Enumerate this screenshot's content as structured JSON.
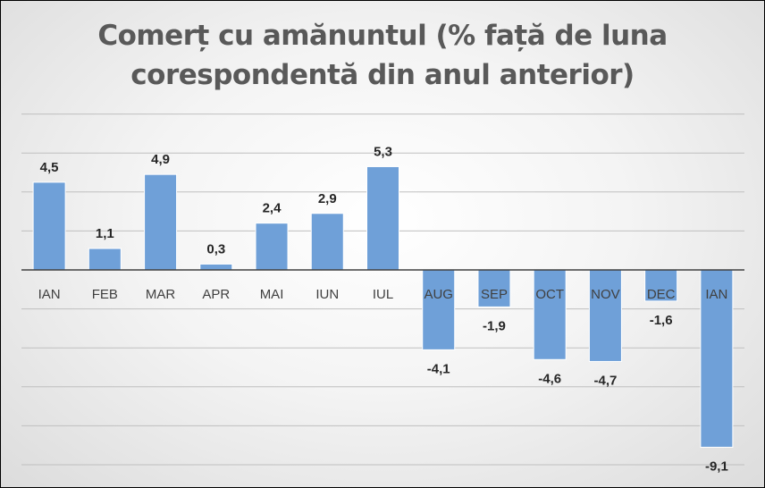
{
  "chart_data": {
    "type": "bar",
    "title_line1": "Comerț cu amănuntul (% față de luna",
    "title_line2": "corespondentă din anul anterior)",
    "categories": [
      "IAN",
      "FEB",
      "MAR",
      "APR",
      "MAI",
      "IUN",
      "IUL",
      "AUG",
      "SEP",
      "OCT",
      "NOV",
      "DEC",
      "IAN"
    ],
    "values": [
      4.5,
      1.1,
      4.9,
      0.3,
      2.4,
      2.9,
      5.3,
      -4.1,
      -1.9,
      -4.6,
      -4.7,
      -1.6,
      -9.1
    ],
    "value_labels": [
      "4,5",
      "1,1",
      "4,9",
      "0,3",
      "2,4",
      "2,9",
      "5,3",
      "-4,1",
      "-1,9",
      "-4,6",
      "-4,7",
      "-1,6",
      "-9,1"
    ],
    "ylim": [
      -10,
      8
    ],
    "y_grid_step": 2,
    "grid": true,
    "y_tick_labels_visible": false,
    "bar_color": "#6fa0d8",
    "bar_stroke": "#ffffff",
    "grid_color": "#bfbfbf",
    "axis_color": "#404040",
    "label_color": "#262626",
    "title_color": "#595959"
  }
}
